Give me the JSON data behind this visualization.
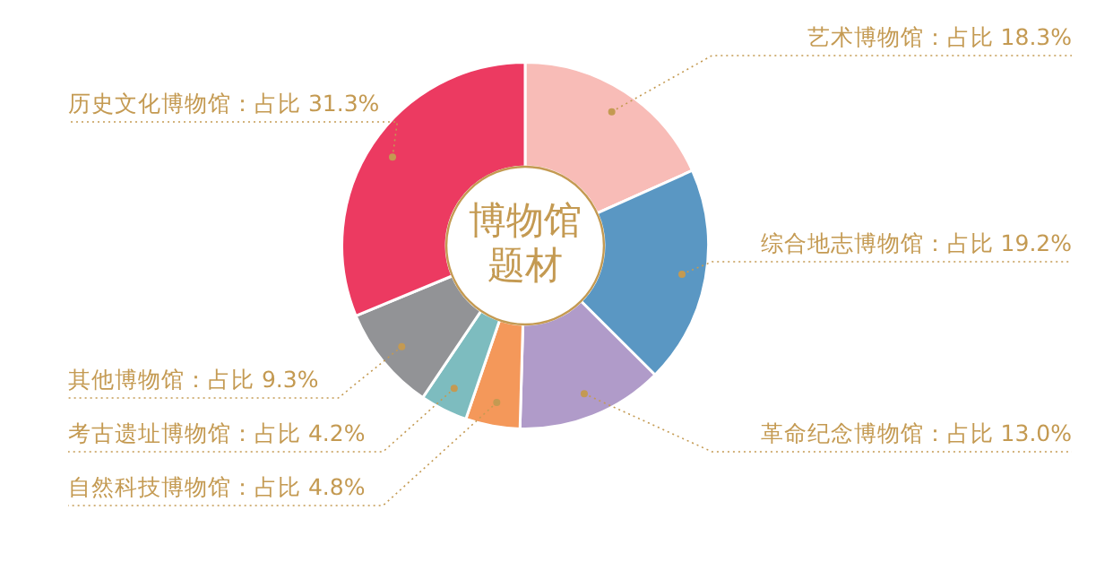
{
  "chart_data": {
    "type": "donut",
    "categories": [
      "艺术博物馆",
      "综合地志博物馆",
      "革命纪念博物馆",
      "自然科技博物馆",
      "考古遗址博物馆",
      "其他博物馆",
      "历史文化博物馆"
    ],
    "values": [
      18.3,
      19.2,
      13.0,
      4.8,
      4.2,
      9.3,
      31.3
    ],
    "colors": [
      "#f8bcb7",
      "#5a97c3",
      "#b09bc9",
      "#f4985a",
      "#7dbcbf",
      "#929396",
      "#ec3a61"
    ],
    "value_labels": [
      "：占比 18.3%",
      "：占比 19.2%",
      "：占比 13.0%",
      "：占比 4.8%",
      "：占比 4.2%",
      "：占比 9.3%",
      "：占比 31.3%"
    ],
    "annotations": [
      "博物馆题材"
    ],
    "legend": false
  }
}
